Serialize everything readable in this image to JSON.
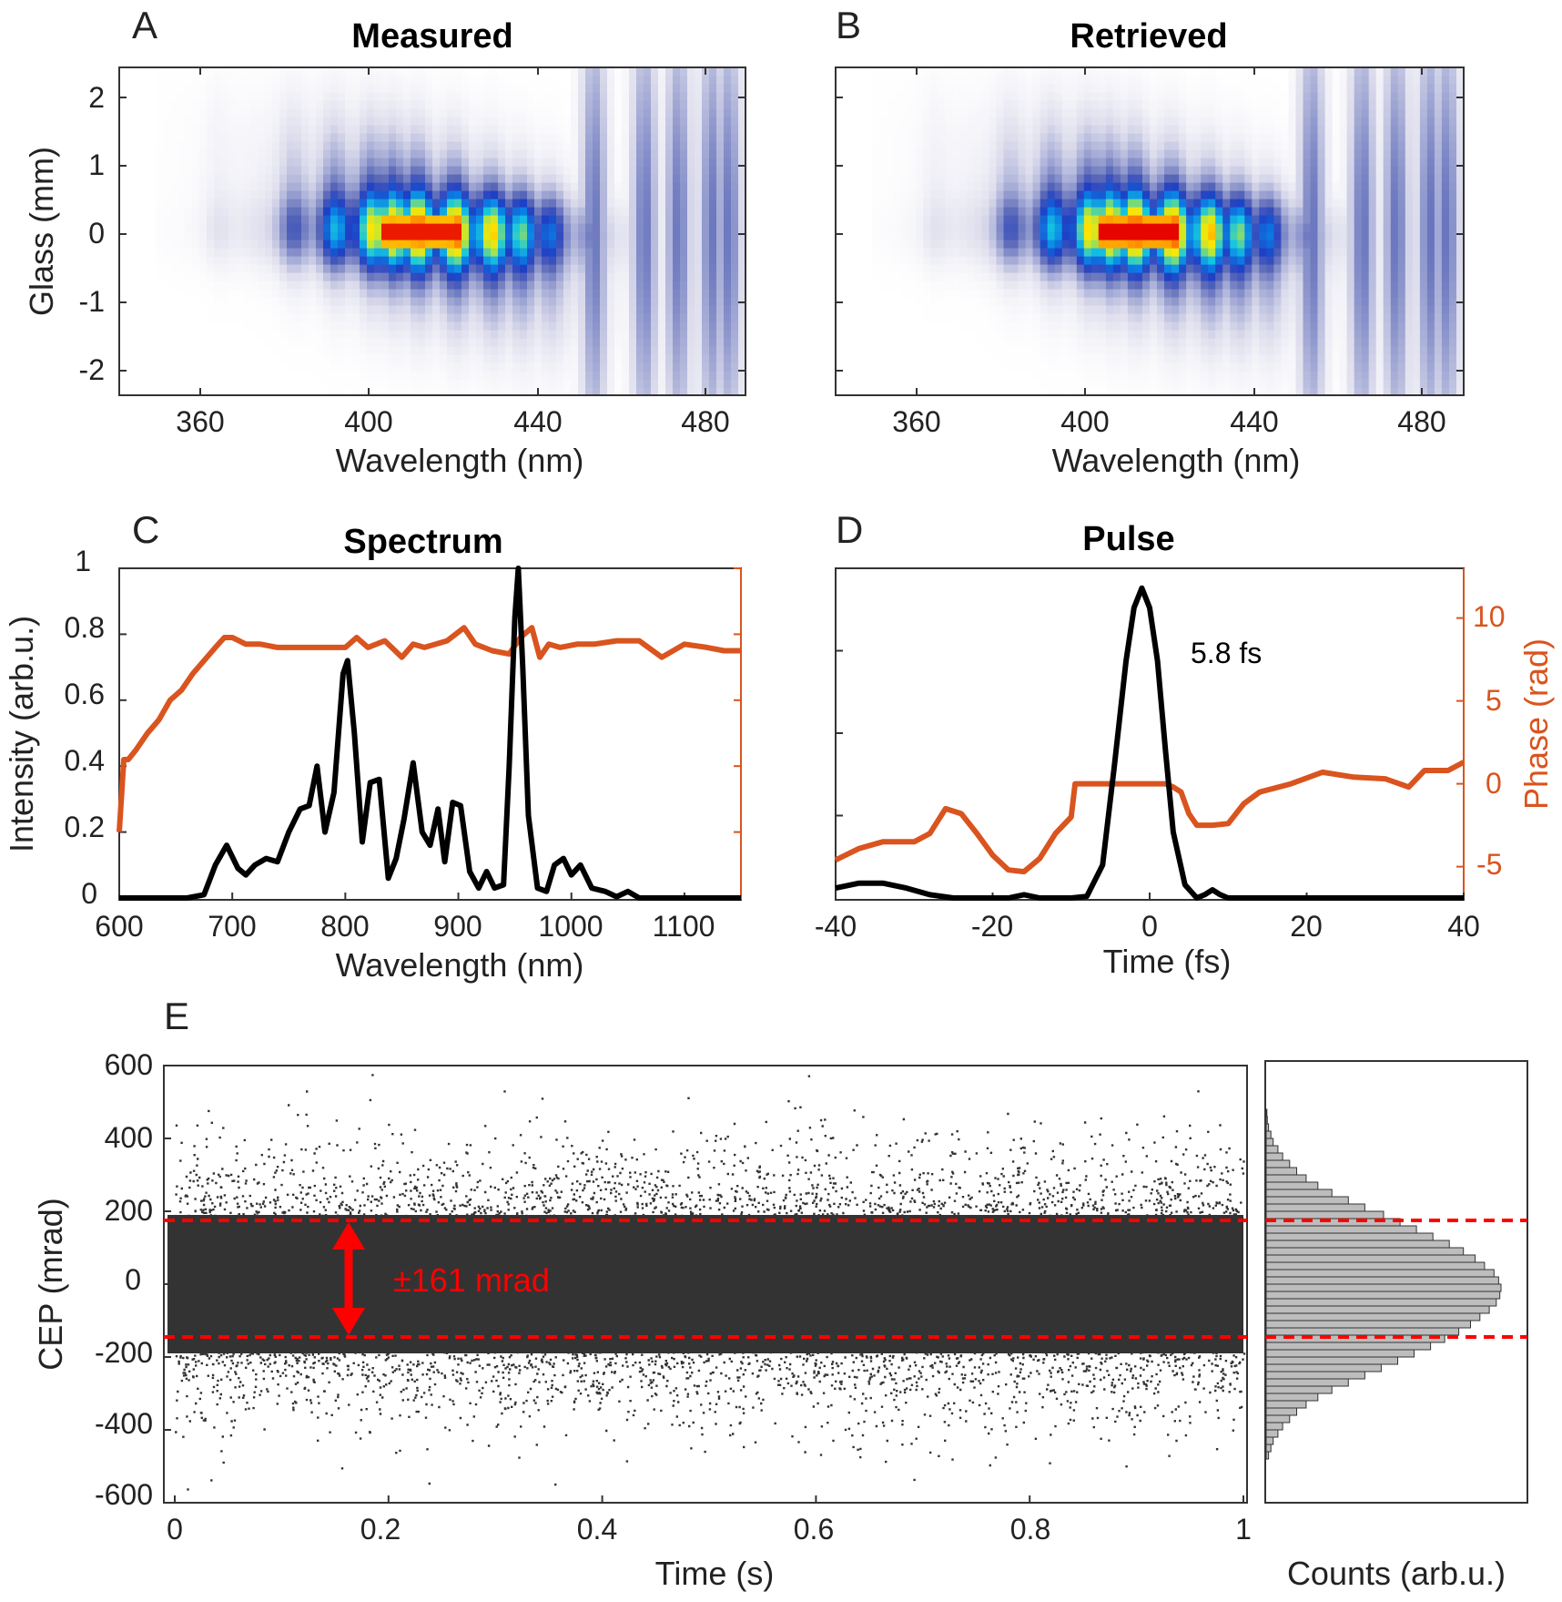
{
  "colors": {
    "axis": "#333333",
    "spectrum_line": "#000000",
    "phase_line": "#d9541e",
    "phase_axis": "#d9541e",
    "cep_dots": "#333333",
    "cep_band": "#ff0000",
    "histogram_fill": "#bdbdbd",
    "heatmap_colormap": [
      "#ffffff",
      "#dcdcec",
      "#9fa6d3",
      "#5a68b8",
      "#1f3fc4",
      "#0a7fe6",
      "#16c7e0",
      "#b9e63a",
      "#ffe600",
      "#ff7300",
      "#e60000",
      "#8a0000"
    ]
  },
  "panels": {
    "A": {
      "label": "A",
      "title": "Measured",
      "xlabel": "Wavelength (nm)",
      "ylabel": "Glass (mm)",
      "xticks": [
        "360",
        "400",
        "440",
        "480"
      ],
      "yticks": [
        "2",
        "1",
        "0",
        "-1",
        "-2"
      ]
    },
    "B": {
      "label": "B",
      "title": "Retrieved",
      "xlabel": "Wavelength (nm)",
      "xticks": [
        "360",
        "400",
        "440",
        "480"
      ]
    },
    "C": {
      "label": "C",
      "title": "Spectrum",
      "xlabel": "Wavelength (nm)",
      "ylabel": "Intensity (arb.u.)",
      "xticks": [
        "600",
        "700",
        "800",
        "900",
        "1000",
        "1100"
      ],
      "yticks": [
        "0",
        "0.2",
        "0.4",
        "0.6",
        "0.8",
        "1"
      ]
    },
    "D": {
      "label": "D",
      "title": "Pulse",
      "xlabel": "Time (fs)",
      "ylabel_right": "Phase (rad)",
      "xticks": [
        "-40",
        "-20",
        "0",
        "20",
        "40"
      ],
      "yticks_right": [
        "10",
        "5",
        "0",
        "-5"
      ],
      "annotation": "5.8 fs"
    },
    "E": {
      "label": "E",
      "xlabel": "Time (s)",
      "ylabel": "CEP (mrad)",
      "xticks": [
        "0",
        "0.2",
        "0.4",
        "0.6",
        "0.8",
        "1"
      ],
      "yticks": [
        "600",
        "400",
        "200",
        "0",
        "-200",
        "-400",
        "-600"
      ],
      "annotation": "±161 mrad",
      "hist_xlabel": "Counts (arb.u.)"
    }
  },
  "chart_data": [
    {
      "panel": "A",
      "type": "heatmap",
      "title": "Measured",
      "xlabel": "Wavelength (nm)",
      "ylabel": "Glass (mm)",
      "xlim": [
        343,
        492
      ],
      "ylim": [
        -2.5,
        2.5
      ],
      "peaks_nm": [
        366,
        384,
        394,
        403,
        408,
        414,
        423,
        432,
        439,
        446,
        456,
        468,
        476,
        484,
        488
      ],
      "max_region": {
        "x": [
          405,
          425
        ],
        "y": [
          -0.2,
          0.2
        ]
      }
    },
    {
      "panel": "B",
      "type": "heatmap",
      "title": "Retrieved",
      "xlabel": "Wavelength (nm)",
      "xlim": [
        343,
        492
      ],
      "ylim": [
        -2.5,
        2.5
      ],
      "peaks_nm": [
        366,
        384,
        394,
        403,
        408,
        414,
        423,
        432,
        439,
        446,
        456,
        468,
        476,
        484,
        488
      ],
      "max_region": {
        "x": [
          405,
          425
        ],
        "y": [
          -0.2,
          0.2
        ]
      }
    },
    {
      "panel": "C",
      "type": "line",
      "title": "Spectrum",
      "xlabel": "Wavelength (nm)",
      "ylabel": "Intensity (arb.u.)",
      "xlim": [
        600,
        1150
      ],
      "ylim": [
        0,
        1
      ],
      "series": [
        {
          "name": "Intensity",
          "axis": "left",
          "x": [
            600,
            660,
            675,
            685,
            695,
            705,
            712,
            720,
            730,
            740,
            750,
            760,
            768,
            775,
            782,
            790,
            798,
            802,
            808,
            815,
            822,
            830,
            838,
            845,
            852,
            860,
            868,
            875,
            882,
            888,
            895,
            902,
            910,
            918,
            925,
            932,
            940,
            945,
            950,
            953,
            957,
            962,
            970,
            978,
            985,
            993,
            1000,
            1008,
            1018,
            1030,
            1040,
            1050,
            1060,
            1075,
            1150
          ],
          "y": [
            0,
            0,
            0.01,
            0.1,
            0.16,
            0.09,
            0.07,
            0.1,
            0.12,
            0.11,
            0.2,
            0.27,
            0.28,
            0.4,
            0.2,
            0.32,
            0.68,
            0.72,
            0.5,
            0.17,
            0.35,
            0.36,
            0.06,
            0.12,
            0.24,
            0.41,
            0.2,
            0.16,
            0.27,
            0.11,
            0.29,
            0.28,
            0.08,
            0.03,
            0.08,
            0.03,
            0.04,
            0.4,
            0.85,
            1.0,
            0.7,
            0.25,
            0.03,
            0.02,
            0.1,
            0.12,
            0.07,
            0.1,
            0.03,
            0.02,
            0.004,
            0.02,
            0,
            0,
            0
          ]
        },
        {
          "name": "Phase",
          "axis": "right",
          "x": [
            600,
            604,
            608,
            615,
            625,
            635,
            645,
            655,
            665,
            675,
            685,
            693,
            700,
            712,
            725,
            740,
            760,
            780,
            800,
            810,
            820,
            835,
            850,
            860,
            870,
            890,
            905,
            915,
            930,
            945,
            955,
            965,
            972,
            980,
            990,
            1005,
            1020,
            1040,
            1060,
            1080,
            1100,
            1120,
            1135,
            1150
          ],
          "y": [
            0.2,
            0.42,
            0.42,
            0.45,
            0.5,
            0.54,
            0.6,
            0.63,
            0.68,
            0.72,
            0.76,
            0.79,
            0.79,
            0.77,
            0.77,
            0.76,
            0.76,
            0.76,
            0.76,
            0.79,
            0.76,
            0.78,
            0.73,
            0.77,
            0.76,
            0.78,
            0.82,
            0.77,
            0.75,
            0.74,
            0.79,
            0.82,
            0.73,
            0.77,
            0.76,
            0.77,
            0.77,
            0.78,
            0.78,
            0.73,
            0.77,
            0.76,
            0.75,
            0.75
          ]
        }
      ]
    },
    {
      "panel": "D",
      "type": "line",
      "title": "Pulse",
      "xlabel": "Time (fs)",
      "ylabel_right": "Phase (rad)",
      "xlim": [
        -40,
        40
      ],
      "ylim_right": [
        -7,
        13
      ],
      "series": [
        {
          "name": "Intensity",
          "axis": "left",
          "x": [
            -40,
            -37,
            -34,
            -31,
            -28,
            -25,
            -18,
            -16,
            -14,
            -10,
            -8,
            -6,
            -4.5,
            -3,
            -2,
            -1,
            0,
            1,
            2,
            3,
            4.5,
            6,
            7,
            8,
            9,
            10,
            15,
            20,
            40
          ],
          "y": [
            0.03,
            0.045,
            0.045,
            0.03,
            0.01,
            0,
            0,
            0.01,
            0,
            0,
            0.005,
            0.1,
            0.4,
            0.72,
            0.88,
            0.94,
            0.88,
            0.72,
            0.45,
            0.2,
            0.04,
            0,
            0.01,
            0.025,
            0.01,
            0,
            0,
            0,
            0
          ]
        },
        {
          "name": "Phase",
          "axis": "right",
          "x": [
            -40,
            -37,
            -34,
            -30,
            -28,
            -26,
            -24,
            -22,
            -20,
            -18,
            -16,
            -14,
            -12,
            -10,
            -9.5,
            -8,
            -6,
            -4,
            -2,
            0,
            2,
            3,
            4,
            5,
            6,
            8,
            10,
            12,
            14,
            18,
            22,
            26,
            30,
            33,
            35,
            38,
            40
          ],
          "y": [
            -4.6,
            -3.9,
            -3.5,
            -3.5,
            -3.0,
            -1.5,
            -1.8,
            -3.0,
            -4.3,
            -5.2,
            -5.3,
            -4.5,
            -3.0,
            -2.0,
            0,
            0,
            0,
            0,
            0,
            0,
            0,
            -0.2,
            -0.5,
            -1.8,
            -2.5,
            -2.5,
            -2.4,
            -1.2,
            -0.5,
            0,
            0.7,
            0.4,
            0.3,
            -0.2,
            0.8,
            0.8,
            1.3
          ]
        }
      ]
    },
    {
      "panel": "E",
      "type": "scatter",
      "xlabel": "Time (s)",
      "ylabel": "CEP (mrad)",
      "xlim": [
        0,
        1
      ],
      "ylim": [
        -600,
        600
      ],
      "band": [
        -161,
        161
      ],
      "y_std_mrad": 161,
      "annotation": "±161 mrad",
      "histogram": {
        "xlabel": "Counts (arb.u.)",
        "orientation": "horizontal",
        "bin_centers": [
          -470,
          -450,
          -430,
          -410,
          -390,
          -370,
          -350,
          -330,
          -310,
          -290,
          -270,
          -250,
          -230,
          -210,
          -190,
          -170,
          -150,
          -130,
          -110,
          -90,
          -70,
          -50,
          -30,
          -10,
          10,
          30,
          50,
          70,
          90,
          110,
          130,
          150,
          170,
          190,
          210,
          230,
          250,
          270,
          290,
          310,
          330,
          350,
          370,
          390,
          410,
          430,
          450,
          470
        ],
        "counts": [
          0.01,
          0.02,
          0.03,
          0.05,
          0.07,
          0.1,
          0.13,
          0.17,
          0.22,
          0.28,
          0.35,
          0.42,
          0.49,
          0.56,
          0.63,
          0.7,
          0.76,
          0.82,
          0.87,
          0.91,
          0.95,
          0.98,
          0.995,
          1.0,
          0.99,
          0.97,
          0.93,
          0.89,
          0.84,
          0.78,
          0.71,
          0.64,
          0.57,
          0.5,
          0.42,
          0.35,
          0.28,
          0.22,
          0.17,
          0.13,
          0.1,
          0.07,
          0.05,
          0.03,
          0.02,
          0.01,
          0.005,
          0.003
        ]
      }
    }
  ]
}
